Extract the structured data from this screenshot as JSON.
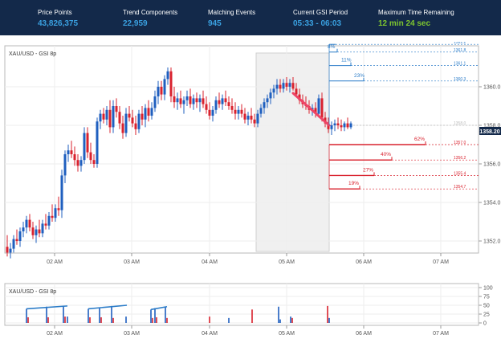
{
  "header": {
    "stats": [
      {
        "label": "Price Points",
        "value": "43,826,375"
      },
      {
        "label": "Trend Components",
        "value": "22,959"
      },
      {
        "label": "Matching Events",
        "value": "945"
      },
      {
        "label": "Current GSI Period",
        "value": "05:33 - 06:03"
      },
      {
        "label": "Maximum Time Remaining",
        "value": "12 min 24 sec"
      }
    ]
  },
  "main_chart": {
    "title": "XAU/USD - GSI 8p",
    "price_tag": "1358.20",
    "y_ticks": [
      "1352.0",
      "1354.0",
      "1356.0",
      "1358.0",
      "1360.0"
    ],
    "x_ticks": [
      "02 AM",
      "03 AM",
      "04 AM",
      "05 AM",
      "06 AM",
      "07 AM"
    ],
    "level_labels": [
      "1362.2",
      "1361.8",
      "1361.1",
      "1360.3",
      "1358.0",
      "1357.0",
      "1356.2",
      "1355.4",
      "1354.7"
    ],
    "projections_up": [
      {
        "pct": "8%",
        "level": 1361.8
      },
      {
        "pct": "11%",
        "level": 1361.1
      },
      {
        "pct": "23%",
        "level": 1360.3
      }
    ],
    "projections_down": [
      {
        "pct": "62%",
        "level": 1357.0
      },
      {
        "pct": "40%",
        "level": 1356.2
      },
      {
        "pct": "27%",
        "level": 1355.4
      },
      {
        "pct": "19%",
        "level": 1354.7
      }
    ],
    "top_level": 1362.2,
    "current_level": 1358.0,
    "colors": {
      "up": "#1f5fbf",
      "down": "#d9222e",
      "highlight": "#f0f0f0",
      "up_text": "#2b7cc8",
      "down_text": "#d9222e"
    }
  },
  "sub_chart": {
    "title": "XAU/USD - GSI 8p",
    "y_ticks": [
      "0",
      "25",
      "50",
      "75",
      "100"
    ],
    "x_ticks": [
      "02 AM",
      "03 AM",
      "04 AM",
      "05 AM",
      "06 AM",
      "07 AM"
    ]
  }
}
